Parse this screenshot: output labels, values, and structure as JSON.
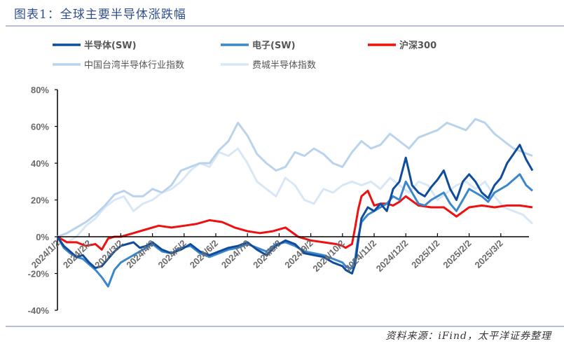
{
  "header": {
    "title": "图表1：全球主要半导体涨跌幅"
  },
  "footer": {
    "source": "资料来源：iFind，太平洋证券整理"
  },
  "colors": {
    "semi_sw": "#0f4c9c",
    "elec_sw": "#3b86cc",
    "hs300": "#ee1111",
    "tw_semi": "#b9d3ec",
    "sox": "#d8e7f5",
    "axis": "#000000",
    "tick_label": "#6a6a6a"
  },
  "legend": [
    {
      "label": "半导体(SW)",
      "color": "#0f4c9c"
    },
    {
      "label": "电子(SW)",
      "color": "#3b86cc"
    },
    {
      "label": "沪深300",
      "color": "#ee1111"
    },
    {
      "label": "中国台湾半导体行业指数",
      "color": "#b9d3ec"
    },
    {
      "label": "费城半导体指数",
      "color": "#d8e7f5"
    }
  ],
  "chart_data": {
    "type": "line",
    "title": "图表1：全球主要半导体涨跌幅",
    "xlabel": "",
    "ylabel": "",
    "ylim": [
      -40,
      80
    ],
    "yticks": [
      "80%",
      "60%",
      "40%",
      "20%",
      "0%",
      "-20%",
      "-40%"
    ],
    "ytick_values": [
      80,
      60,
      40,
      20,
      0,
      -20,
      -40
    ],
    "x_tick_labels": [
      "2024/1/2",
      "2024/2/2",
      "2024/3/2",
      "2024/4/2",
      "2024/5/2",
      "2024/6/2",
      "2024/7/2",
      "2024/8/2",
      "2024/9/2",
      "2024/10/2",
      "2024/11/2",
      "2024/12/2",
      "2025/1/2",
      "2025/2/2",
      "2025/3/2"
    ],
    "x_range": [
      "2024/1/2",
      "2025/3/末"
    ],
    "grid": false,
    "legend_position": "top",
    "x_units": "months since 2024/1/2",
    "series": [
      {
        "name": "半导体(SW)",
        "x": [
          0,
          0.2,
          0.4,
          0.6,
          0.8,
          1.0,
          1.2,
          1.4,
          1.6,
          1.8,
          2.0,
          2.2,
          2.4,
          2.6,
          2.8,
          3.0,
          3.3,
          3.6,
          3.9,
          4.2,
          4.5,
          4.8,
          5.1,
          5.4,
          5.7,
          6.0,
          6.3,
          6.6,
          6.9,
          7.2,
          7.5,
          7.8,
          8.1,
          8.4,
          8.7,
          9.0,
          9.1,
          9.2,
          9.3,
          9.4,
          9.5,
          9.6,
          9.8,
          10.0,
          10.2,
          10.4,
          10.6,
          10.8,
          11.0,
          11.2,
          11.4,
          11.6,
          11.8,
          12.0,
          12.2,
          12.4,
          12.6,
          12.8,
          13.0,
          13.2,
          13.4,
          13.6,
          13.8,
          14.0,
          14.2,
          14.4,
          14.6,
          14.8,
          15.0
        ],
        "values": [
          0,
          -5,
          -8,
          -11,
          -10,
          -14,
          -17,
          -16,
          -12,
          -8,
          -5,
          -4,
          -3,
          -6,
          -5,
          -3,
          -7,
          -9,
          -7,
          -4,
          -8,
          -10,
          -8,
          -6,
          -5,
          -3,
          -7,
          -10,
          -5,
          -2,
          -4,
          -9,
          -10,
          -11,
          -14,
          -16,
          -18,
          -19,
          -20,
          -15,
          -2,
          10,
          16,
          14,
          18,
          14,
          26,
          30,
          43,
          28,
          24,
          22,
          27,
          31,
          36,
          26,
          20,
          30,
          34,
          30,
          24,
          21,
          28,
          32,
          40,
          45,
          50,
          42,
          36
        ]
      },
      {
        "name": "电子(SW)",
        "x": [
          0,
          0.2,
          0.4,
          0.6,
          0.8,
          1.0,
          1.2,
          1.4,
          1.6,
          1.8,
          2.0,
          2.2,
          2.4,
          2.6,
          2.8,
          3.0,
          3.3,
          3.6,
          3.9,
          4.2,
          4.5,
          4.8,
          5.1,
          5.4,
          5.7,
          6.0,
          6.3,
          6.6,
          6.9,
          7.2,
          7.5,
          7.8,
          8.1,
          8.4,
          8.7,
          9.0,
          9.1,
          9.2,
          9.3,
          9.4,
          9.5,
          9.6,
          9.8,
          10.0,
          10.2,
          10.4,
          10.6,
          10.8,
          11.0,
          11.2,
          11.4,
          11.6,
          11.8,
          12.0,
          12.2,
          12.4,
          12.6,
          12.8,
          13.0,
          13.2,
          13.4,
          13.6,
          13.8,
          14.0,
          14.2,
          14.4,
          14.6,
          14.8,
          15.0
        ],
        "values": [
          0,
          -6,
          -9,
          -11,
          -12,
          -15,
          -18,
          -22,
          -27,
          -18,
          -14,
          -12,
          -10,
          -8,
          -6,
          -4,
          -8,
          -9,
          -6,
          -5,
          -9,
          -11,
          -9,
          -7,
          -6,
          -4,
          -6,
          -8,
          -4,
          -3,
          -5,
          -8,
          -9,
          -10,
          -12,
          -14,
          -16,
          -17,
          -17,
          -12,
          0,
          8,
          12,
          14,
          16,
          18,
          22,
          20,
          30,
          24,
          18,
          17,
          20,
          22,
          24,
          18,
          14,
          20,
          26,
          24,
          22,
          19,
          24,
          26,
          28,
          31,
          34,
          28,
          25
        ]
      },
      {
        "name": "沪深300",
        "x": [
          0,
          0.3,
          0.6,
          0.9,
          1.2,
          1.4,
          1.6,
          1.8,
          2.0,
          2.4,
          2.8,
          3.2,
          3.6,
          4.0,
          4.4,
          4.8,
          5.2,
          5.6,
          6.0,
          6.4,
          6.8,
          7.2,
          7.6,
          8.0,
          8.4,
          8.8,
          9.0,
          9.1,
          9.2,
          9.3,
          9.4,
          9.5,
          9.6,
          9.8,
          10.0,
          10.2,
          10.4,
          10.6,
          10.8,
          11.0,
          11.4,
          11.8,
          12.2,
          12.6,
          13.0,
          13.4,
          13.8,
          14.2,
          14.6,
          15.0
        ],
        "values": [
          0,
          -3,
          -3,
          -5,
          -4,
          -7,
          -1,
          0,
          0,
          2,
          4,
          6,
          5,
          6,
          7,
          9,
          8,
          5,
          3,
          2,
          3,
          5,
          0,
          -2,
          -3,
          -4,
          -5,
          -6,
          -5,
          -4,
          5,
          15,
          22,
          25,
          17,
          18,
          18,
          17,
          19,
          22,
          17,
          16,
          16,
          11,
          16,
          17,
          16,
          17,
          17,
          16
        ]
      },
      {
        "name": "中国台湾半导体行业指数",
        "x": [
          0,
          0.3,
          0.6,
          0.9,
          1.2,
          1.5,
          1.8,
          2.1,
          2.4,
          2.7,
          3.0,
          3.3,
          3.6,
          3.9,
          4.2,
          4.5,
          4.8,
          5.1,
          5.4,
          5.7,
          6.0,
          6.3,
          6.6,
          6.9,
          7.2,
          7.5,
          7.8,
          8.1,
          8.4,
          8.7,
          9.0,
          9.3,
          9.6,
          9.9,
          10.2,
          10.5,
          10.8,
          11.1,
          11.4,
          11.7,
          12.0,
          12.3,
          12.6,
          12.9,
          13.2,
          13.5,
          13.8,
          14.1,
          14.4,
          14.7,
          15.0
        ],
        "values": [
          0,
          2,
          5,
          8,
          12,
          17,
          23,
          25,
          22,
          22,
          26,
          24,
          28,
          36,
          38,
          40,
          40,
          47,
          52,
          62,
          55,
          45,
          40,
          36,
          38,
          46,
          44,
          48,
          45,
          40,
          38,
          46,
          52,
          48,
          50,
          56,
          52,
          48,
          54,
          56,
          58,
          62,
          60,
          58,
          64,
          62,
          56,
          52,
          48,
          46,
          44
        ]
      },
      {
        "name": "费城半导体指数",
        "x": [
          0,
          0.3,
          0.6,
          0.9,
          1.2,
          1.5,
          1.8,
          2.1,
          2.4,
          2.7,
          3.0,
          3.3,
          3.6,
          3.9,
          4.2,
          4.5,
          4.8,
          5.1,
          5.4,
          5.7,
          6.0,
          6.3,
          6.6,
          6.9,
          7.2,
          7.5,
          7.8,
          8.1,
          8.4,
          8.7,
          9.0,
          9.3,
          9.6,
          9.9,
          10.2,
          10.5,
          10.8,
          11.1,
          11.4,
          11.7,
          12.0,
          12.3,
          12.6,
          12.9,
          13.2,
          13.5,
          13.8,
          14.1,
          14.4,
          14.7,
          15.0
        ],
        "values": [
          0,
          -3,
          0,
          6,
          10,
          16,
          20,
          22,
          14,
          18,
          20,
          24,
          26,
          30,
          36,
          40,
          38,
          46,
          44,
          48,
          40,
          30,
          26,
          22,
          32,
          28,
          20,
          18,
          26,
          24,
          28,
          30,
          28,
          30,
          26,
          32,
          28,
          24,
          30,
          28,
          20,
          24,
          28,
          30,
          26,
          30,
          22,
          16,
          14,
          12,
          7
        ]
      }
    ]
  }
}
